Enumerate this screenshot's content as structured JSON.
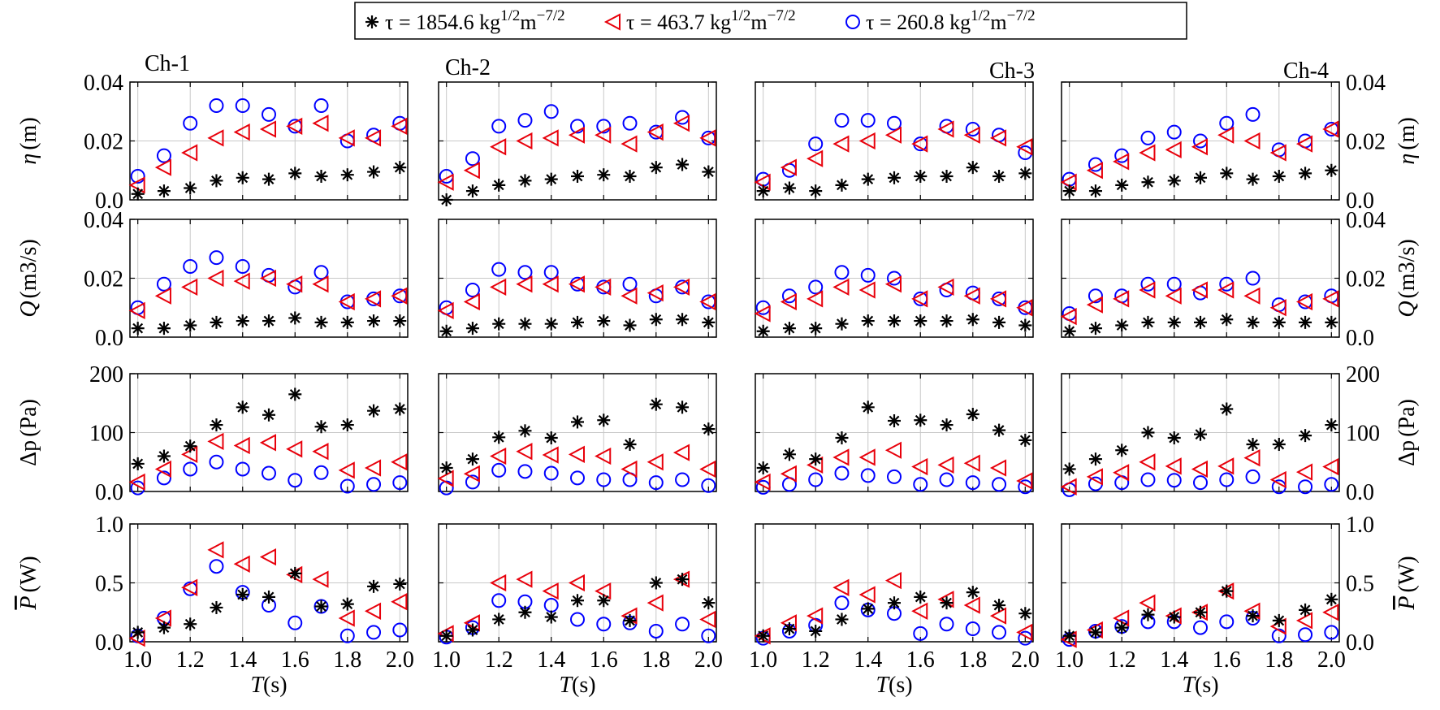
{
  "legend": {
    "entries": [
      {
        "prefix": "τ = 1854.6 kg",
        "sup1": "1/2",
        "mid": "m",
        "sup2": "−7/2",
        "marker": "star",
        "color": "#000000"
      },
      {
        "prefix": "τ = 463.7 kg",
        "sup1": "1/2",
        "mid": "m",
        "sup2": "−7/2",
        "marker": "triangle-left",
        "color": "#e8000b"
      },
      {
        "prefix": "τ = 260.8 kg",
        "sup1": "1/2",
        "mid": "m",
        "sup2": "−7/2",
        "marker": "circle",
        "color": "#0000ff"
      }
    ]
  },
  "colors": {
    "series1": "#000000",
    "series2": "#e8000b",
    "series3": "#0000ff",
    "grid": "#c8c8c8"
  },
  "chart_data": {
    "type": "scatter",
    "x": [
      1.0,
      1.1,
      1.2,
      1.3,
      1.4,
      1.5,
      1.6,
      1.7,
      1.8,
      1.9,
      2.0
    ],
    "xlabel": "T(s)",
    "xticks": [
      "1.0",
      "1.2",
      "1.4",
      "1.6",
      "1.8",
      "2.0"
    ],
    "xlim": [
      0.97,
      2.03
    ],
    "grid": true,
    "series_names": [
      "τ = 1854.6 kg1/2m−7/2",
      "τ = 463.7 kg1/2m−7/2",
      "τ = 260.8 kg1/2m−7/2"
    ],
    "channels": [
      "Ch-1",
      "Ch-2",
      "Ch-3",
      "Ch-4"
    ],
    "rows": [
      {
        "key": "eta",
        "ylabel_main": "η",
        "ylabel_unit": "(m)",
        "ylim": [
          0,
          0.04
        ],
        "yticks": [
          "0.0",
          "0.02",
          "0.04"
        ],
        "panels": [
          [
            [
              0.002,
              0.003,
              0.004,
              0.0065,
              0.0075,
              0.007,
              0.009,
              0.008,
              0.0085,
              0.0095,
              0.011
            ],
            [
              0.005,
              0.011,
              0.016,
              0.021,
              0.023,
              0.024,
              0.025,
              0.026,
              0.021,
              0.021,
              0.025
            ],
            [
              0.008,
              0.015,
              0.026,
              0.032,
              0.032,
              0.029,
              0.025,
              0.032,
              0.02,
              0.022,
              0.026
            ]
          ],
          [
            [
              0.0,
              0.003,
              0.005,
              0.0065,
              0.007,
              0.008,
              0.0085,
              0.008,
              0.011,
              0.012,
              0.0095
            ],
            [
              0.006,
              0.01,
              0.018,
              0.02,
              0.021,
              0.022,
              0.022,
              0.019,
              0.023,
              0.026,
              0.021
            ],
            [
              0.008,
              0.014,
              0.025,
              0.027,
              0.03,
              0.025,
              0.025,
              0.026,
              0.023,
              0.028,
              0.021
            ]
          ],
          [
            [
              0.003,
              0.004,
              0.003,
              0.005,
              0.007,
              0.0075,
              0.008,
              0.008,
              0.011,
              0.008,
              0.009
            ],
            [
              0.006,
              0.011,
              0.014,
              0.019,
              0.02,
              0.022,
              0.019,
              0.024,
              0.022,
              0.021,
              0.018
            ],
            [
              0.007,
              0.01,
              0.019,
              0.027,
              0.027,
              0.026,
              0.019,
              0.025,
              0.024,
              0.022,
              0.016
            ]
          ],
          [
            [
              0.003,
              0.003,
              0.005,
              0.006,
              0.0065,
              0.0075,
              0.009,
              0.007,
              0.008,
              0.009,
              0.01
            ],
            [
              0.006,
              0.01,
              0.013,
              0.016,
              0.017,
              0.018,
              0.022,
              0.02,
              0.016,
              0.019,
              0.024
            ],
            [
              0.007,
              0.012,
              0.015,
              0.021,
              0.023,
              0.02,
              0.026,
              0.029,
              0.017,
              0.02,
              0.024
            ]
          ]
        ]
      },
      {
        "key": "Q",
        "ylabel_main": "Q",
        "ylabel_unit": "(m3/s)",
        "ylim": [
          0,
          0.04
        ],
        "yticks": [
          "0.0",
          "0.02",
          "0.04"
        ],
        "panels": [
          [
            [
              0.003,
              0.003,
              0.004,
              0.005,
              0.0055,
              0.0055,
              0.0065,
              0.005,
              0.005,
              0.0055,
              0.0055
            ],
            [
              0.009,
              0.014,
              0.017,
              0.02,
              0.019,
              0.02,
              0.018,
              0.018,
              0.012,
              0.013,
              0.014
            ],
            [
              0.01,
              0.018,
              0.024,
              0.027,
              0.024,
              0.021,
              0.017,
              0.022,
              0.012,
              0.013,
              0.014
            ]
          ],
          [
            [
              0.002,
              0.003,
              0.0045,
              0.0045,
              0.0045,
              0.005,
              0.0055,
              0.004,
              0.006,
              0.006,
              0.005
            ],
            [
              0.009,
              0.012,
              0.017,
              0.018,
              0.018,
              0.018,
              0.017,
              0.014,
              0.015,
              0.017,
              0.012
            ],
            [
              0.01,
              0.016,
              0.023,
              0.022,
              0.022,
              0.018,
              0.017,
              0.018,
              0.014,
              0.017,
              0.012
            ]
          ],
          [
            [
              0.002,
              0.003,
              0.003,
              0.0045,
              0.0055,
              0.0055,
              0.0055,
              0.0055,
              0.006,
              0.005,
              0.004
            ],
            [
              0.008,
              0.012,
              0.013,
              0.017,
              0.016,
              0.018,
              0.013,
              0.017,
              0.014,
              0.013,
              0.01
            ],
            [
              0.01,
              0.014,
              0.017,
              0.022,
              0.021,
              0.02,
              0.013,
              0.016,
              0.015,
              0.013,
              0.01
            ]
          ],
          [
            [
              0.002,
              0.003,
              0.004,
              0.005,
              0.005,
              0.005,
              0.006,
              0.005,
              0.005,
              0.005,
              0.005
            ],
            [
              0.007,
              0.011,
              0.013,
              0.016,
              0.014,
              0.016,
              0.016,
              0.014,
              0.01,
              0.012,
              0.013
            ],
            [
              0.008,
              0.014,
              0.014,
              0.018,
              0.018,
              0.015,
              0.018,
              0.02,
              0.011,
              0.012,
              0.014
            ]
          ]
        ]
      },
      {
        "key": "dp",
        "ylabel_main": "Δp",
        "ylabel_unit": "(Pa)",
        "ylim": [
          0,
          200
        ],
        "yticks": [
          "0.0",
          "100",
          "200"
        ],
        "panels": [
          [
            [
              47,
              60,
              77,
              113,
              143,
              130,
              165,
              110,
              113,
              137,
              140
            ],
            [
              16,
              38,
              63,
              85,
              78,
              83,
              72,
              68,
              36,
              40,
              50
            ],
            [
              6,
              23,
              38,
              50,
              38,
              31,
              19,
              32,
              9,
              12,
              15
            ]
          ],
          [
            [
              40,
              55,
              92,
              103,
              91,
              118,
              121,
              80,
              148,
              143,
              106
            ],
            [
              22,
              30,
              60,
              68,
              62,
              63,
              60,
              38,
              50,
              66,
              38
            ],
            [
              6,
              16,
              36,
              34,
              31,
              23,
              20,
              20,
              15,
              20,
              10
            ]
          ],
          [
            [
              40,
              63,
              55,
              91,
              143,
              120,
              121,
              113,
              131,
              104,
              87
            ],
            [
              16,
              30,
              45,
              58,
              58,
              70,
              42,
              45,
              48,
              40,
              18
            ],
            [
              7,
              12,
              20,
              31,
              27,
              25,
              12,
              20,
              15,
              12,
              8
            ]
          ],
          [
            [
              38,
              55,
              70,
              100,
              91,
              97,
              140,
              80,
              80,
              95,
              113
            ],
            [
              8,
              25,
              32,
              50,
              43,
              38,
              43,
              57,
              20,
              33,
              42
            ],
            [
              3,
              13,
              15,
              20,
              19,
              15,
              20,
              25,
              8,
              8,
              12
            ]
          ]
        ]
      },
      {
        "key": "P",
        "ylabel_main": "P",
        "ylabel_unit": "(W)",
        "ylim": [
          0,
          1.0
        ],
        "yticks": [
          "0.0",
          "0.5",
          "1.0"
        ],
        "panels": [
          [
            [
              0.08,
              0.12,
              0.15,
              0.29,
              0.4,
              0.38,
              0.58,
              0.3,
              0.32,
              0.47,
              0.49
            ],
            [
              0.03,
              0.2,
              0.46,
              0.78,
              0.66,
              0.72,
              0.57,
              0.53,
              0.2,
              0.26,
              0.34
            ],
            [
              0.05,
              0.2,
              0.45,
              0.64,
              0.42,
              0.31,
              0.16,
              0.3,
              0.05,
              0.08,
              0.1
            ]
          ],
          [
            [
              0.05,
              0.1,
              0.19,
              0.25,
              0.21,
              0.35,
              0.35,
              0.18,
              0.5,
              0.53,
              0.33
            ],
            [
              0.07,
              0.16,
              0.5,
              0.53,
              0.43,
              0.5,
              0.43,
              0.22,
              0.33,
              0.53,
              0.19
            ],
            [
              0.04,
              0.12,
              0.35,
              0.34,
              0.31,
              0.19,
              0.15,
              0.16,
              0.09,
              0.15,
              0.05
            ]
          ],
          [
            [
              0.05,
              0.11,
              0.09,
              0.19,
              0.28,
              0.33,
              0.38,
              0.33,
              0.42,
              0.31,
              0.24
            ],
            [
              0.05,
              0.16,
              0.22,
              0.46,
              0.4,
              0.52,
              0.26,
              0.36,
              0.31,
              0.22,
              0.08
            ],
            [
              0.03,
              0.09,
              0.14,
              0.33,
              0.27,
              0.24,
              0.07,
              0.15,
              0.11,
              0.08,
              0.03
            ]
          ],
          [
            [
              0.05,
              0.08,
              0.12,
              0.23,
              0.21,
              0.25,
              0.43,
              0.22,
              0.18,
              0.27,
              0.36
            ],
            [
              0.02,
              0.1,
              0.2,
              0.33,
              0.22,
              0.25,
              0.43,
              0.26,
              0.13,
              0.18,
              0.25
            ],
            [
              0.02,
              0.09,
              0.13,
              0.17,
              0.17,
              0.12,
              0.17,
              0.2,
              0.05,
              0.06,
              0.08
            ]
          ]
        ]
      }
    ]
  }
}
